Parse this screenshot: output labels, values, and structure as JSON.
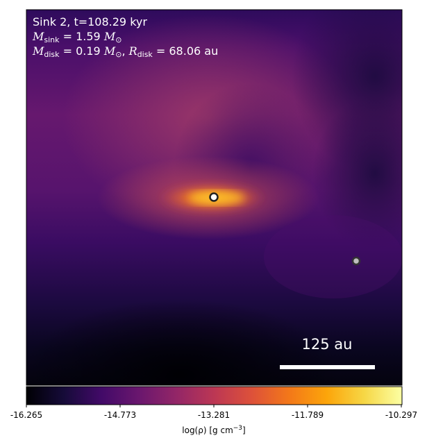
{
  "annotations": {
    "title": "Sink 2, t=108.29 kyr",
    "sink_mass_label": "M",
    "sink_mass_sub": "sink",
    "sink_mass_value": " = 1.59 ",
    "disk_mass_label": "M",
    "disk_mass_sub": "disk",
    "disk_mass_value": " = 0.19 ",
    "disk_radius_label": "R",
    "disk_radius_sub": "disk",
    "disk_radius_value": " = 68.06 au",
    "msun_symbol": "M",
    "msun_sub": "⊙"
  },
  "scale_bar": {
    "label": "125 au"
  },
  "colorbar": {
    "tick_labels": [
      "-16.265",
      "-14.773",
      "-13.281",
      "-11.789",
      "-10.297"
    ],
    "label_prefix": "log(ρ) [g cm",
    "label_exponent": "−3",
    "label_suffix": "]",
    "colormap": "inferno"
  },
  "sinks": [
    {
      "name": "sink-2",
      "fill": "#ffffff"
    },
    {
      "name": "sink-other",
      "fill": "#bfbfbf"
    }
  ]
}
